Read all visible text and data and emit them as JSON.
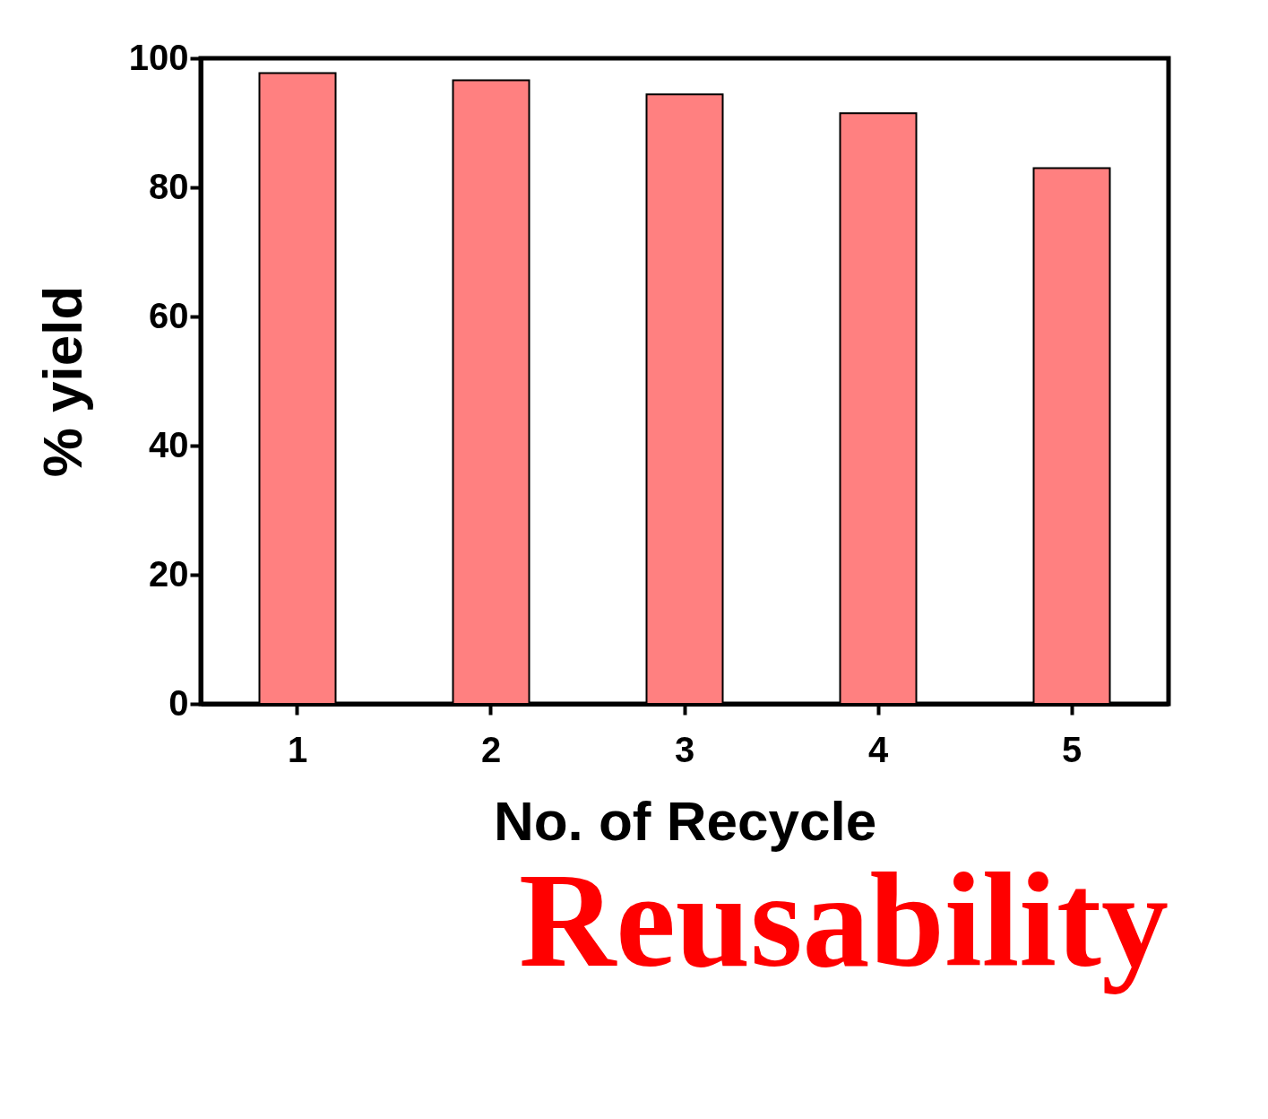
{
  "chart_data": {
    "type": "bar",
    "title": "Reusability",
    "xlabel": "No. of Recycle",
    "ylabel": "% yield",
    "categories": [
      "1",
      "2",
      "3",
      "4",
      "5"
    ],
    "values": [
      97.7,
      96.6,
      94.4,
      91.5,
      83.0
    ],
    "color": "#ff8080",
    "ylim": [
      0,
      100
    ],
    "yticks": [
      0,
      20,
      40,
      60,
      80,
      100
    ],
    "grid": false
  }
}
